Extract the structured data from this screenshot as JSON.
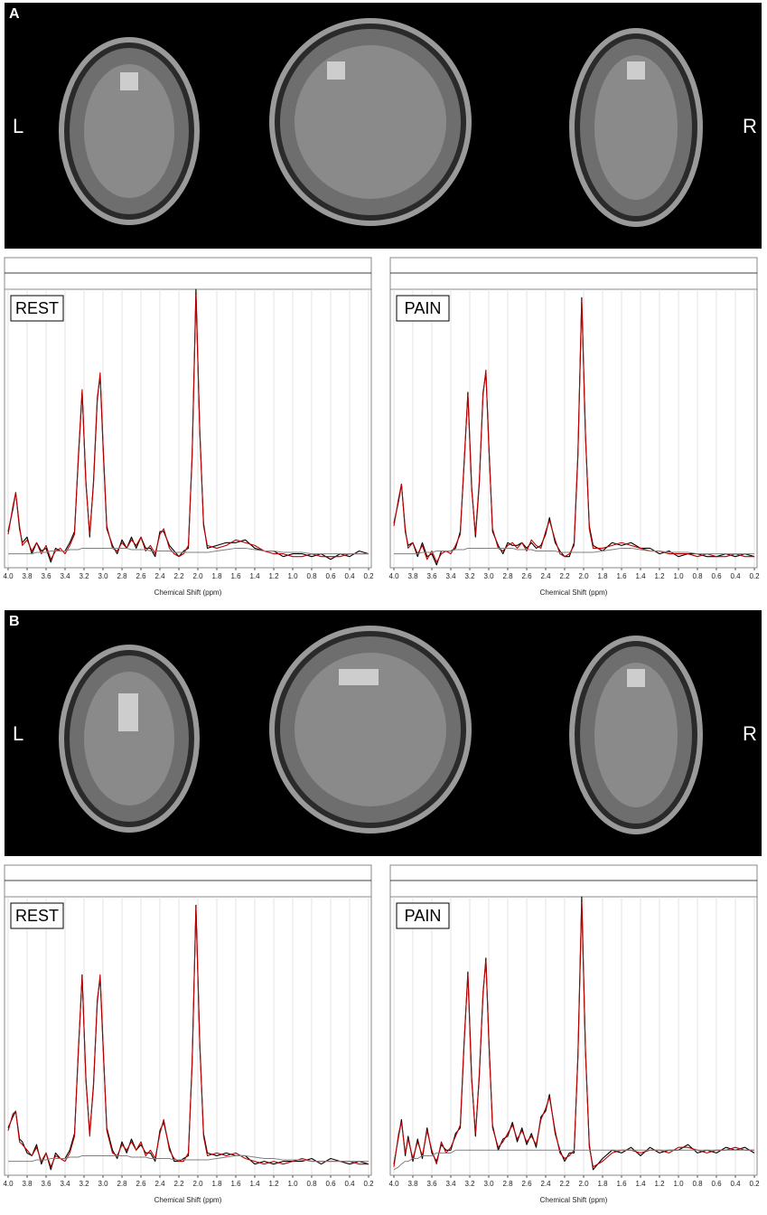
{
  "panels": [
    {
      "label": "A",
      "left": "L",
      "right": "R"
    },
    {
      "label": "B",
      "left": "L",
      "right": "R"
    }
  ],
  "chart_data": [
    {
      "type": "line",
      "title": "REST",
      "x_label": "Chemical Shift (ppm)",
      "x": [
        4.0,
        3.95,
        3.92,
        3.88,
        3.85,
        3.8,
        3.75,
        3.7,
        3.65,
        3.6,
        3.55,
        3.5,
        3.45,
        3.4,
        3.35,
        3.3,
        3.26,
        3.22,
        3.18,
        3.14,
        3.1,
        3.06,
        3.03,
        3.0,
        2.96,
        2.9,
        2.85,
        2.8,
        2.75,
        2.7,
        2.65,
        2.6,
        2.55,
        2.5,
        2.45,
        2.4,
        2.36,
        2.3,
        2.25,
        2.2,
        2.15,
        2.1,
        2.06,
        2.02,
        1.98,
        1.94,
        1.9,
        1.8,
        1.7,
        1.6,
        1.5,
        1.4,
        1.3,
        1.2,
        1.1,
        1.0,
        0.9,
        0.8,
        0.7,
        0.6,
        0.5,
        0.4,
        0.3,
        0.2
      ],
      "xlim": [
        4.0,
        0.2
      ],
      "ylim": [
        0,
        100
      ],
      "xticks": [
        {
          "value": 4,
          "label": "4.0"
        },
        3.8,
        3.6,
        3.4,
        3.2,
        {
          "value": 3,
          "label": "3.0"
        },
        2.8,
        2.6,
        2.4,
        2.2,
        {
          "value": 2,
          "label": "2.0"
        },
        1.8,
        1.6,
        1.4,
        1.2,
        {
          "value": 1,
          "label": "1.0"
        },
        0.8,
        0.6,
        0.4,
        0.2
      ],
      "grid": true,
      "series": [
        {
          "color": "#000000",
          "values": [
            13,
            21,
            27,
            14,
            9,
            11,
            5,
            9,
            6,
            7,
            2,
            7,
            6,
            6,
            9,
            13,
            39,
            63,
            31,
            11,
            31,
            61,
            69,
            44,
            14,
            8,
            5,
            10,
            7,
            11,
            7,
            11,
            7,
            7,
            4,
            13,
            13,
            8,
            6,
            4,
            6,
            7,
            41,
            100,
            49,
            16,
            7,
            8,
            9,
            9,
            10,
            7,
            6,
            6,
            4,
            5,
            5,
            4,
            5,
            3,
            5,
            4,
            6,
            5
          ]
        },
        {
          "color": "#c00000",
          "values": [
            12,
            22,
            27,
            15,
            8,
            10,
            6,
            9,
            5,
            8,
            3,
            6,
            7,
            5,
            8,
            12,
            40,
            64,
            30,
            12,
            30,
            60,
            70,
            45,
            15,
            7,
            6,
            9,
            7,
            10,
            8,
            11,
            6,
            8,
            5,
            12,
            14,
            7,
            5,
            4,
            5,
            8,
            40,
            98,
            50,
            15,
            8,
            7,
            8,
            10,
            9,
            8,
            6,
            5,
            5,
            4,
            4,
            5,
            4,
            4,
            4,
            5,
            5,
            5
          ]
        },
        {
          "color": "#808080",
          "values": [
            5,
            5,
            5,
            5,
            5,
            5,
            5,
            5.5,
            5.5,
            5.5,
            6,
            6,
            6,
            6,
            6.5,
            6.5,
            6.5,
            7,
            7,
            7,
            7,
            7,
            7,
            7,
            7,
            7,
            7,
            7,
            7,
            6.5,
            6.5,
            6.5,
            6.5,
            6,
            6,
            6,
            6,
            6,
            5.5,
            5.5,
            5.5,
            5.5,
            5.5,
            5.5,
            5.5,
            5.5,
            5.5,
            6,
            6.5,
            7,
            7,
            6.5,
            6,
            6,
            5.5,
            5.5,
            5.5,
            5,
            5,
            5,
            5,
            5,
            5,
            5
          ]
        }
      ]
    },
    {
      "type": "line",
      "title": "PAIN",
      "x_label": "Chemical Shift (ppm)",
      "x": [
        4.0,
        3.95,
        3.92,
        3.88,
        3.85,
        3.8,
        3.75,
        3.7,
        3.65,
        3.6,
        3.55,
        3.5,
        3.45,
        3.4,
        3.35,
        3.3,
        3.26,
        3.22,
        3.18,
        3.14,
        3.1,
        3.06,
        3.03,
        3.0,
        2.96,
        2.9,
        2.85,
        2.8,
        2.75,
        2.7,
        2.65,
        2.6,
        2.55,
        2.5,
        2.45,
        2.4,
        2.36,
        2.3,
        2.25,
        2.2,
        2.15,
        2.1,
        2.06,
        2.02,
        1.98,
        1.94,
        1.9,
        1.8,
        1.7,
        1.6,
        1.5,
        1.4,
        1.3,
        1.2,
        1.1,
        1.0,
        0.9,
        0.8,
        0.7,
        0.6,
        0.5,
        0.4,
        0.3,
        0.2
      ],
      "xlim": [
        4.0,
        0.2
      ],
      "ylim": [
        0,
        100
      ],
      "xticks": [
        {
          "value": 4,
          "label": "4.0"
        },
        3.8,
        3.6,
        3.4,
        3.2,
        {
          "value": 3,
          "label": "3.0"
        },
        2.8,
        2.6,
        2.4,
        2.2,
        {
          "value": 2,
          "label": "2.0"
        },
        1.8,
        1.6,
        1.4,
        1.2,
        {
          "value": 1,
          "label": "1.0"
        },
        0.8,
        0.6,
        0.4,
        0.2
      ],
      "grid": true,
      "series": [
        {
          "color": "#000000",
          "values": [
            16,
            24,
            30,
            13,
            8,
            9,
            4,
            9,
            4,
            5,
            1,
            6,
            6,
            6,
            7,
            13,
            37,
            63,
            29,
            11,
            30,
            63,
            70,
            45,
            13,
            8,
            5,
            9,
            8,
            8,
            9,
            7,
            9,
            7,
            8,
            12,
            18,
            9,
            6,
            4,
            4,
            9,
            41,
            97,
            47,
            15,
            8,
            6,
            9,
            8,
            9,
            7,
            7,
            5,
            6,
            4,
            5,
            5,
            4,
            4,
            5,
            4,
            5,
            4
          ]
        },
        {
          "color": "#c00000",
          "values": [
            15,
            25,
            30,
            14,
            7,
            9,
            5,
            8,
            3,
            6,
            2,
            5,
            6,
            5,
            8,
            12,
            38,
            62,
            28,
            12,
            31,
            62,
            71,
            44,
            14,
            7,
            6,
            8,
            9,
            7,
            9,
            6,
            10,
            8,
            7,
            13,
            17,
            10,
            5,
            4,
            5,
            8,
            40,
            96,
            48,
            14,
            7,
            7,
            8,
            9,
            8,
            7,
            6,
            6,
            5,
            5,
            5,
            4,
            5,
            4,
            4,
            5,
            4,
            4
          ]
        },
        {
          "color": "#808080",
          "values": [
            5,
            5,
            5,
            5,
            5,
            5,
            5,
            5.5,
            5.5,
            5.5,
            6,
            6,
            6,
            6,
            6.5,
            6.5,
            6.5,
            7,
            7,
            7,
            7,
            7,
            7,
            7,
            7,
            7,
            7,
            7,
            7,
            6.5,
            6.5,
            6.5,
            6.5,
            6,
            6,
            6,
            6,
            6,
            5.5,
            5.5,
            5.5,
            5.5,
            5.5,
            5.5,
            5.5,
            5.5,
            5.5,
            6,
            6.5,
            7,
            7,
            6.5,
            6,
            6,
            5.5,
            5.5,
            5.5,
            5,
            5,
            5,
            5,
            5,
            5,
            5
          ]
        }
      ]
    },
    {
      "type": "line",
      "title": "REST",
      "x_label": "Chemical Shift (ppm)",
      "x": [
        4.0,
        3.95,
        3.92,
        3.88,
        3.85,
        3.8,
        3.75,
        3.7,
        3.65,
        3.6,
        3.55,
        3.5,
        3.45,
        3.4,
        3.35,
        3.3,
        3.26,
        3.22,
        3.18,
        3.14,
        3.1,
        3.06,
        3.03,
        3.0,
        2.96,
        2.9,
        2.85,
        2.8,
        2.75,
        2.7,
        2.65,
        2.6,
        2.55,
        2.5,
        2.45,
        2.4,
        2.36,
        2.3,
        2.25,
        2.2,
        2.15,
        2.1,
        2.06,
        2.02,
        1.98,
        1.94,
        1.9,
        1.8,
        1.7,
        1.6,
        1.5,
        1.4,
        1.3,
        1.2,
        1.1,
        1.0,
        0.9,
        0.8,
        0.7,
        0.6,
        0.5,
        0.4,
        0.3,
        0.2
      ],
      "xlim": [
        4.0,
        0.2
      ],
      "ylim": [
        0,
        100
      ],
      "xticks": [
        {
          "value": 4,
          "label": "4.0"
        },
        3.8,
        3.6,
        3.4,
        3.2,
        {
          "value": 3,
          "label": "3.0"
        },
        2.8,
        2.6,
        2.4,
        2.2,
        {
          "value": 2,
          "label": "2.0"
        },
        1.8,
        1.6,
        1.4,
        1.2,
        {
          "value": 1,
          "label": "1.0"
        },
        0.8,
        0.6,
        0.4,
        0.2
      ],
      "grid": true,
      "series": [
        {
          "color": "#000000",
          "values": [
            17,
            21,
            23,
            13,
            12,
            8,
            7,
            11,
            4,
            8,
            2,
            8,
            6,
            6,
            9,
            15,
            44,
            72,
            34,
            15,
            32,
            63,
            71,
            47,
            17,
            9,
            6,
            12,
            8,
            13,
            9,
            11,
            8,
            8,
            5,
            16,
            19,
            10,
            5,
            5,
            6,
            7,
            41,
            97,
            47,
            15,
            8,
            7,
            8,
            7,
            7,
            4,
            5,
            4,
            5,
            5,
            5,
            6,
            4,
            6,
            5,
            4,
            5,
            4
          ]
        },
        {
          "color": "#c00000",
          "values": [
            16,
            22,
            23,
            12,
            11,
            9,
            7,
            10,
            5,
            8,
            3,
            7,
            6,
            5,
            8,
            14,
            45,
            71,
            35,
            14,
            33,
            62,
            72,
            48,
            16,
            8,
            7,
            11,
            9,
            12,
            9,
            12,
            7,
            9,
            6,
            15,
            20,
            9,
            6,
            5,
            5,
            8,
            40,
            96,
            48,
            14,
            7,
            8,
            7,
            8,
            6,
            5,
            4,
            5,
            4,
            5,
            6,
            5,
            5,
            5,
            5,
            5,
            4,
            4
          ]
        },
        {
          "color": "#808080",
          "values": [
            5,
            5,
            5,
            5,
            5,
            5,
            5,
            5.5,
            5.5,
            5.5,
            6,
            6,
            6,
            6,
            6.5,
            6.5,
            6.5,
            7,
            7,
            7,
            7,
            7,
            7,
            7,
            7,
            7,
            7,
            7,
            7,
            6.5,
            6.5,
            6.5,
            6.5,
            6,
            6,
            6,
            6,
            6,
            5.5,
            5.5,
            5.5,
            5.5,
            5.5,
            5.5,
            5.5,
            5.5,
            5.5,
            6,
            6.5,
            7,
            7,
            6.5,
            6,
            6,
            5.5,
            5.5,
            5.5,
            5,
            5,
            5,
            5,
            5,
            5,
            5
          ]
        }
      ]
    },
    {
      "type": "line",
      "title": "PAIN",
      "x_label": "Chemical Shift (ppm)",
      "x": [
        4.0,
        3.95,
        3.92,
        3.88,
        3.85,
        3.8,
        3.75,
        3.7,
        3.65,
        3.6,
        3.55,
        3.5,
        3.45,
        3.4,
        3.35,
        3.3,
        3.26,
        3.22,
        3.18,
        3.14,
        3.1,
        3.06,
        3.03,
        3.0,
        2.96,
        2.9,
        2.85,
        2.8,
        2.75,
        2.7,
        2.65,
        2.6,
        2.55,
        2.5,
        2.45,
        2.4,
        2.36,
        2.3,
        2.25,
        2.2,
        2.15,
        2.1,
        2.06,
        2.02,
        1.98,
        1.94,
        1.9,
        1.8,
        1.7,
        1.6,
        1.5,
        1.4,
        1.3,
        1.2,
        1.1,
        1.0,
        0.9,
        0.8,
        0.7,
        0.6,
        0.5,
        0.4,
        0.3,
        0.2
      ],
      "xlim": [
        4.0,
        0.2
      ],
      "ylim": [
        0,
        100
      ],
      "xticks": [
        {
          "value": 4,
          "label": "4.0"
        },
        3.8,
        3.6,
        3.4,
        3.2,
        {
          "value": 3,
          "label": "3.0"
        },
        2.8,
        2.6,
        2.4,
        2.2,
        {
          "value": 2,
          "label": "2.0"
        },
        1.8,
        1.6,
        1.4,
        1.2,
        {
          "value": 1,
          "label": "1.0"
        },
        0.8,
        0.6,
        0.4,
        0.2
      ],
      "grid": true,
      "series": [
        {
          "color": "#000000",
          "values": [
            4,
            14,
            20,
            7,
            14,
            5,
            13,
            6,
            17,
            8,
            5,
            11,
            9,
            9,
            15,
            17,
            47,
            73,
            35,
            14,
            36,
            65,
            78,
            49,
            18,
            9,
            13,
            14,
            19,
            12,
            17,
            11,
            15,
            10,
            21,
            23,
            29,
            15,
            9,
            5,
            8,
            8,
            43,
            100,
            44,
            11,
            2,
            6,
            9,
            8,
            10,
            7,
            10,
            8,
            9,
            9,
            11,
            8,
            9,
            8,
            10,
            9,
            10,
            8
          ]
        },
        {
          "color": "#c00000",
          "values": [
            3,
            15,
            19,
            8,
            13,
            6,
            12,
            7,
            16,
            9,
            4,
            12,
            8,
            10,
            14,
            18,
            48,
            72,
            34,
            15,
            35,
            66,
            77,
            50,
            17,
            10,
            12,
            15,
            18,
            13,
            16,
            12,
            14,
            11,
            20,
            24,
            28,
            16,
            8,
            6,
            7,
            9,
            42,
            98,
            45,
            10,
            3,
            5,
            8,
            9,
            9,
            8,
            9,
            9,
            8,
            10,
            10,
            9,
            8,
            9,
            9,
            10,
            9,
            9
          ]
        },
        {
          "color": "#808080",
          "values": [
            2,
            3,
            4,
            5,
            5,
            6,
            6,
            7,
            7,
            7,
            8,
            8,
            8,
            8,
            9,
            9,
            9,
            9,
            9,
            9,
            9,
            9,
            9,
            9,
            9,
            9,
            9,
            9,
            9,
            9,
            9,
            9,
            9,
            9,
            9,
            9,
            9,
            9,
            9,
            9,
            9,
            9,
            9,
            9,
            9,
            9,
            9,
            9,
            9,
            9,
            9,
            9,
            9,
            9,
            9,
            9,
            9,
            9,
            9,
            9,
            9,
            9,
            9,
            9
          ]
        }
      ]
    }
  ]
}
